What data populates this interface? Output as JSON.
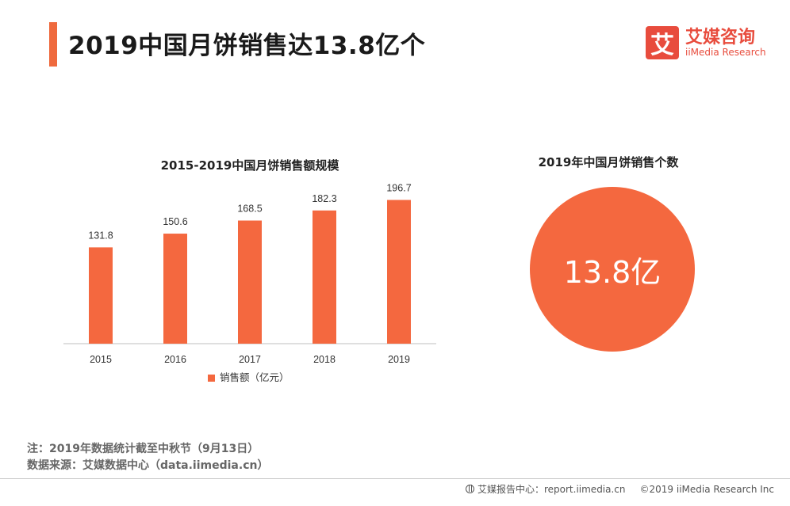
{
  "header": {
    "title": "2019中国月饼销售达13.8亿个"
  },
  "logo": {
    "mark": "艾",
    "name_cn": "艾媒咨询",
    "name_en": "iiMedia Research"
  },
  "chart_data": {
    "type": "bar",
    "title": "2015-2019中国月饼销售额规模",
    "categories": [
      "2015",
      "2016",
      "2017",
      "2018",
      "2019"
    ],
    "series": [
      {
        "name": "销售额（亿元）",
        "values": [
          131.8,
          150.6,
          168.5,
          182.3,
          196.7
        ],
        "color": "#f4683f"
      }
    ],
    "ylim": [
      0,
      220
    ],
    "xlabel": "",
    "ylabel": "",
    "grid": false,
    "legend": "bottom-center"
  },
  "summary": {
    "title": "2019年中国月饼销售个数",
    "value": "13.8亿",
    "color": "#f4683f"
  },
  "notes": {
    "note": "注：2019年数据统计截至中秋节（9月13日）",
    "source": "数据来源：艾媒数据中心（data.iimedia.cn）"
  },
  "footer": {
    "icon": "globe-icon",
    "site": "艾媒报告中心：report.iimedia.cn",
    "copyright": "©2019  iiMedia Research  Inc"
  }
}
